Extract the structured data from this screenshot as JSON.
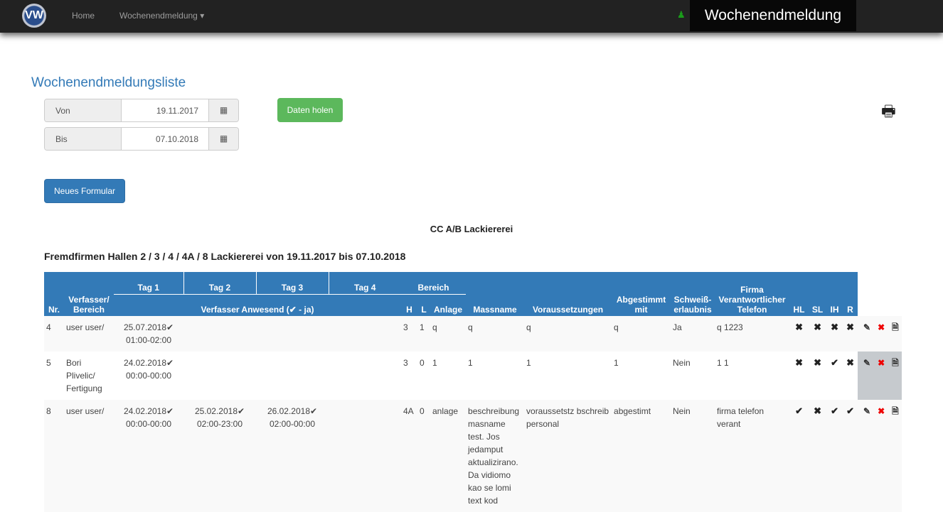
{
  "nav": {
    "logo": "VW",
    "home": "Home",
    "menu": "Wochenendmeldung ▾",
    "brand": "Wochenendmeldung"
  },
  "page": {
    "title": "Wochenendmeldungsliste",
    "von_label": "Von",
    "von_value": "19.11.2017",
    "bis_label": "Bis",
    "bis_value": "07.10.2018",
    "fetch": "Daten holen",
    "new_form": "Neues Formular",
    "center_title": "CC A/B Lackiererei",
    "subhead": "Fremdfirmen Hallen 2 / 3 / 4 / 4A / 8 Lackiererei von 19.11.2017 bis 07.10.2018"
  },
  "colors": {
    "primary": "#337ab7",
    "success": "#5cb85c",
    "navbar": "#222222"
  },
  "table": {
    "headers": {
      "nr": "Nr.",
      "verfasser": "Verfasser/ Bereich",
      "tag1": "Tag 1",
      "tag2": "Tag 2",
      "tag3": "Tag 3",
      "tag4": "Tag 4",
      "anwesend": "Verfasser Anwesend (✔ - ja)",
      "bereich": "Bereich",
      "h": "H",
      "l": "L",
      "anlage": "Anlage",
      "massname": "Massname",
      "voraus": "Voraussetzungen",
      "abgestimmt": "Abgestimmt mit",
      "schweiss": "Schweiß- erlaubnis",
      "firma": "Firma Verantwortlicher Telefon",
      "hl": "HL",
      "sl": "SL",
      "ih": "IH",
      "r": "R"
    },
    "rows": [
      {
        "nr": "4",
        "verfasser": "user user/",
        "tag1": "25.07.2018✔ 01:00-02:00",
        "tag2": "",
        "tag3": "",
        "tag4": "",
        "h": "3",
        "l": "1",
        "anlage": "q",
        "massname": "q",
        "voraus": "q",
        "abgestimmt": "q",
        "schweiss": "Ja",
        "firma": "q 1223",
        "hl": "✖",
        "sl": "✖",
        "ih": "✖",
        "r": "✖"
      },
      {
        "nr": "5",
        "verfasser": "Bori Plivelic/ Fertigung",
        "tag1": "24.02.2018✔ 00:00-00:00",
        "tag2": "",
        "tag3": "",
        "tag4": "",
        "h": "3",
        "l": "0",
        "anlage": "1",
        "massname": "1",
        "voraus": "1",
        "abgestimmt": "1",
        "schweiss": "Nein",
        "firma": "1 1",
        "hl": "✖",
        "sl": "✖",
        "ih": "✔",
        "r": "✖"
      },
      {
        "nr": "8",
        "verfasser": "user user/",
        "tag1": "24.02.2018✔ 00:00-00:00",
        "tag2": "25.02.2018✔ 02:00-23:00",
        "tag3": "26.02.2018✔ 02:00-00:00",
        "tag4": "",
        "h": "4A",
        "l": "0",
        "anlage": "anlage",
        "massname": "beschreibung masname test. Jos jedamput aktualizirano. Da vidiomo kao se lomi text kod",
        "voraus": "voraussetstz bschreib personal",
        "abgestimmt": "abgestimt",
        "schweiss": "Nein",
        "firma": "firma telefon verant",
        "hl": "✔",
        "sl": "✖",
        "ih": "✔",
        "r": "✔"
      }
    ],
    "actions": {
      "edit": "✎",
      "delete": "✖",
      "pdf": "🗎"
    }
  }
}
